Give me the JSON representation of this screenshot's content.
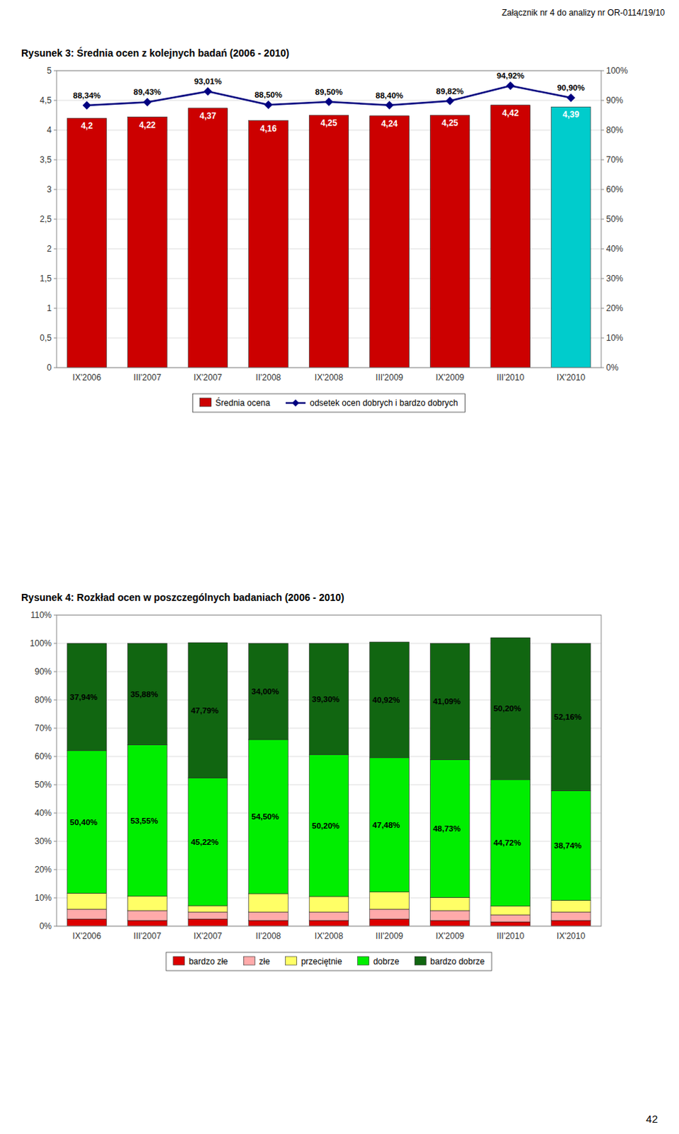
{
  "header": "Załącznik nr 4 do analizy nr OR-0114/19/10",
  "page_number": "42",
  "chart_data": [
    {
      "type": "bar",
      "title": "Rysunek 3: Średnia ocen z kolejnych badań (2006 - 2010)",
      "categories": [
        "IX'2006",
        "III'2007",
        "IX'2007",
        "II'2008",
        "IX'2008",
        "III'2009",
        "IX'2009",
        "III'2010",
        "IX'2010"
      ],
      "series": [
        {
          "name": "Średnia ocena",
          "type": "bar",
          "color": "#cc0000",
          "colors": [
            "#cc0000",
            "#cc0000",
            "#cc0000",
            "#cc0000",
            "#cc0000",
            "#cc0000",
            "#cc0000",
            "#cc0000",
            "#00cccc"
          ],
          "values": [
            4.2,
            4.22,
            4.37,
            4.16,
            4.25,
            4.24,
            4.25,
            4.42,
            4.39
          ],
          "value_labels": [
            "4,2",
            "4,22",
            "4,37",
            "4,16",
            "4,25",
            "4,24",
            "4,25",
            "4,42",
            "4,39"
          ]
        },
        {
          "name": "odsetek ocen dobrych i bardzo dobrych",
          "type": "line",
          "axis": "y2",
          "color": "navy",
          "marker": "diamond",
          "line_style": "solid",
          "values": [
            88.34,
            89.43,
            93.01,
            88.5,
            89.5,
            88.4,
            89.82,
            94.92,
            90.9
          ],
          "value_labels": [
            "88,34%",
            "89,43%",
            "93,01%",
            "88,50%",
            "89,50%",
            "88,40%",
            "89,82%",
            "94,92%",
            "90,90%"
          ]
        }
      ],
      "ylim": [
        0,
        5
      ],
      "yticks": [
        0,
        {
          "value": 0.5,
          "label": "0,5"
        },
        1,
        {
          "value": 1.5,
          "label": "1,5"
        },
        2,
        {
          "value": 2.5,
          "label": "2,5"
        },
        3,
        {
          "value": 3.5,
          "label": "3,5"
        },
        4,
        {
          "value": 4.5,
          "label": "4,5"
        },
        5
      ],
      "y2lim": [
        0,
        100
      ],
      "y2ticks": [
        {
          "value": 0,
          "label": "0%"
        },
        {
          "value": 10,
          "label": "10%"
        },
        {
          "value": 20,
          "label": "20%"
        },
        {
          "value": 30,
          "label": "30%"
        },
        {
          "value": 40,
          "label": "40%"
        },
        {
          "value": 50,
          "label": "50%"
        },
        {
          "value": 60,
          "label": "60%"
        },
        {
          "value": 70,
          "label": "70%"
        },
        {
          "value": 80,
          "label": "80%"
        },
        {
          "value": 90,
          "label": "90%"
        },
        {
          "value": 100,
          "label": "100%"
        }
      ],
      "grid": true,
      "legend": "bottom",
      "data_labels": true
    },
    {
      "type": "bar",
      "title": "Rysunek 4: Rozkład ocen w poszczególnych badaniach (2006 - 2010)",
      "categories": [
        "IX'2006",
        "III'2007",
        "IX'2007",
        "II'2008",
        "IX'2008",
        "III'2009",
        "IX'2009",
        "III'2010",
        "IX'2010"
      ],
      "stacked": true,
      "series": [
        {
          "name": "bardzo złe",
          "color": "#dd0000",
          "values": [
            2.5,
            2.0,
            2.5,
            2.0,
            2.0,
            2.5,
            2.0,
            1.5,
            2.0
          ]
        },
        {
          "name": "złe",
          "color": "#ffaaaa",
          "values": [
            3.5,
            3.5,
            2.5,
            3.0,
            3.0,
            3.5,
            3.5,
            2.5,
            3.0
          ]
        },
        {
          "name": "przeciętnie",
          "color": "#ffff66",
          "values": [
            5.66,
            5.07,
            2.24,
            6.5,
            5.5,
            6.08,
            4.68,
            3.08,
            4.1
          ]
        },
        {
          "name": "dobrze",
          "color": "#00ee00",
          "data_labels": true,
          "values": [
            50.4,
            53.55,
            45.22,
            54.5,
            50.2,
            47.48,
            48.73,
            44.72,
            38.74
          ],
          "value_labels": [
            "50,40%",
            "53,55%",
            "45,22%",
            "54,50%",
            "50,20%",
            "47,48%",
            "48,73%",
            "44,72%",
            "38,74%"
          ]
        },
        {
          "name": "bardzo dobrze",
          "color": "#116611",
          "data_labels": true,
          "values": [
            37.94,
            35.88,
            47.79,
            34.0,
            39.3,
            40.92,
            41.09,
            50.2,
            52.16
          ],
          "value_labels": [
            "37,94%",
            "35,88%",
            "47,79%",
            "34,00%",
            "39,30%",
            "40,92%",
            "41,09%",
            "50,20%",
            "52,16%"
          ]
        }
      ],
      "ylim": [
        0,
        110
      ],
      "yticks": [
        {
          "value": 0,
          "label": "0%"
        },
        {
          "value": 10,
          "label": "10%"
        },
        {
          "value": 20,
          "label": "20%"
        },
        {
          "value": 30,
          "label": "30%"
        },
        {
          "value": 40,
          "label": "40%"
        },
        {
          "value": 50,
          "label": "50%"
        },
        {
          "value": 60,
          "label": "60%"
        },
        {
          "value": 70,
          "label": "70%"
        },
        {
          "value": 80,
          "label": "80%"
        },
        {
          "value": 90,
          "label": "90%"
        },
        {
          "value": 100,
          "label": "100%"
        },
        {
          "value": 110,
          "label": "110%"
        }
      ],
      "grid": true,
      "legend": "bottom"
    }
  ]
}
